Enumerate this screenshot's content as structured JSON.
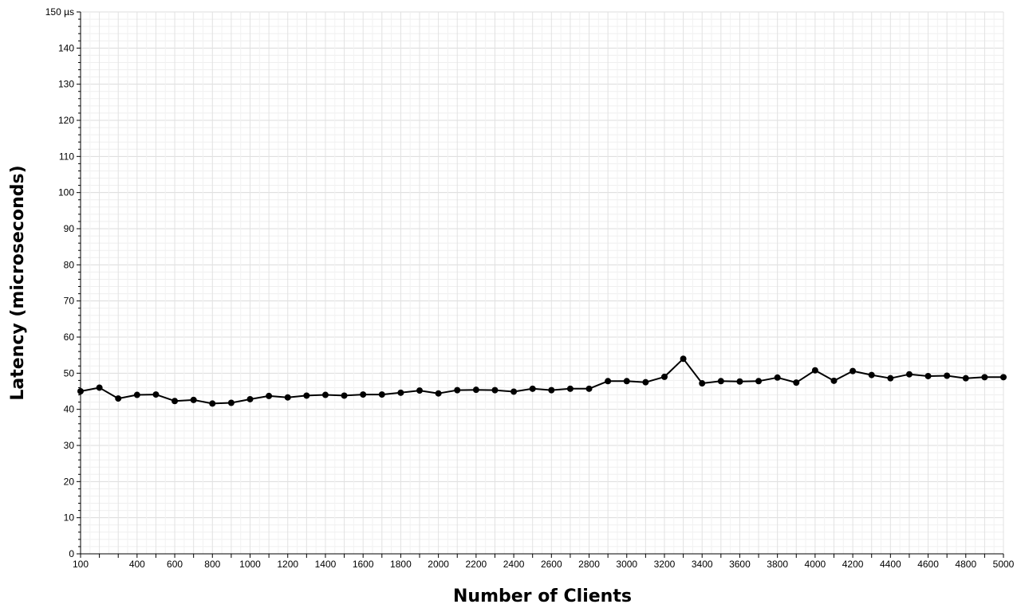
{
  "chart_data": {
    "type": "line",
    "title": "",
    "xlabel": "Number of Clients",
    "ylabel": "Latency (microseconds)",
    "xlim": [
      100,
      5000
    ],
    "ylim": [
      0,
      150
    ],
    "grid": true,
    "legend": "none",
    "x_ticks": [
      "100",
      "400",
      "600",
      "800",
      "1000",
      "1200",
      "1400",
      "1600",
      "1800",
      "2000",
      "2200",
      "2400",
      "2600",
      "2800",
      "3000",
      "3200",
      "3400",
      "3600",
      "3800",
      "4000",
      "4200",
      "4400",
      "4600",
      "4800",
      "5000"
    ],
    "y_ticks": [
      "0",
      "10",
      "20",
      "30",
      "40",
      "50",
      "60",
      "70",
      "80",
      "90",
      "100",
      "110",
      "120",
      "130",
      "140",
      "150 µs"
    ],
    "series": [
      {
        "color": "#000000",
        "x": [
          100,
          200,
          300,
          400,
          500,
          600,
          700,
          800,
          900,
          1000,
          1100,
          1200,
          1300,
          1400,
          1500,
          1600,
          1700,
          1800,
          1900,
          2000,
          2100,
          2200,
          2300,
          2400,
          2500,
          2600,
          2700,
          2800,
          2900,
          3000,
          3100,
          3200,
          3300,
          3400,
          3500,
          3600,
          3700,
          3800,
          3900,
          4000,
          4100,
          4200,
          4300,
          4400,
          4500,
          4600,
          4700,
          4800,
          4900,
          5000
        ],
        "y": [
          45.0,
          46.0,
          43.0,
          44.0,
          44.1,
          42.3,
          42.6,
          41.6,
          41.8,
          42.8,
          43.7,
          43.3,
          43.8,
          44.0,
          43.8,
          44.1,
          44.1,
          44.6,
          45.2,
          44.4,
          45.3,
          45.4,
          45.3,
          44.9,
          45.7,
          45.3,
          45.7,
          45.7,
          47.8,
          47.8,
          47.5,
          49.0,
          54.0,
          47.2,
          47.8,
          47.7,
          47.8,
          48.8,
          47.4,
          50.8,
          47.9,
          50.6,
          49.5,
          48.6,
          49.7,
          49.2,
          49.3,
          48.6,
          48.9,
          48.9
        ]
      }
    ]
  }
}
